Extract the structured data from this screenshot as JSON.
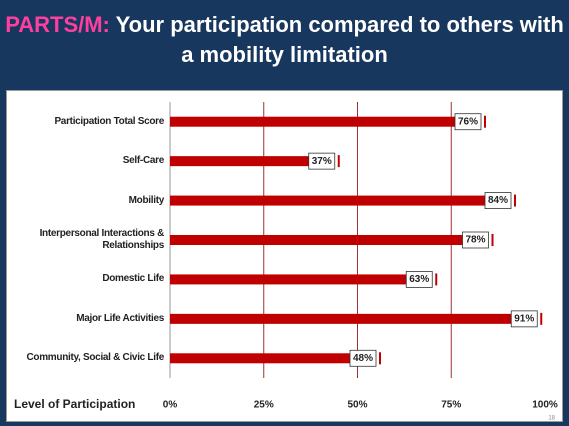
{
  "chart_data": {
    "type": "bar",
    "orientation": "horizontal",
    "title_prefix": "PARTS/M:",
    "title": "Your participation compared to others with a mobility limitation",
    "categories": [
      "Participation Total Score",
      "Self-Care",
      "Mobility",
      "Interpersonal Interactions & Relationships",
      "Domestic Life",
      "Major Life Activities",
      "Community, Social & Civic Life"
    ],
    "values": [
      76,
      37,
      84,
      78,
      63,
      91,
      48
    ],
    "value_labels": [
      "76%",
      "37%",
      "84%",
      "78%",
      "63%",
      "91%",
      "48%"
    ],
    "color": "#c00000",
    "xlabel": "Level of Participation",
    "xlim": [
      0,
      100
    ],
    "xticks": [
      {
        "value": 0,
        "label": "0%"
      },
      {
        "value": 25,
        "label": "25%"
      },
      {
        "value": 50,
        "label": "50%"
      },
      {
        "value": 75,
        "label": "75%"
      },
      {
        "value": 100,
        "label": "100%"
      }
    ],
    "grid": true,
    "page_number": "18"
  }
}
